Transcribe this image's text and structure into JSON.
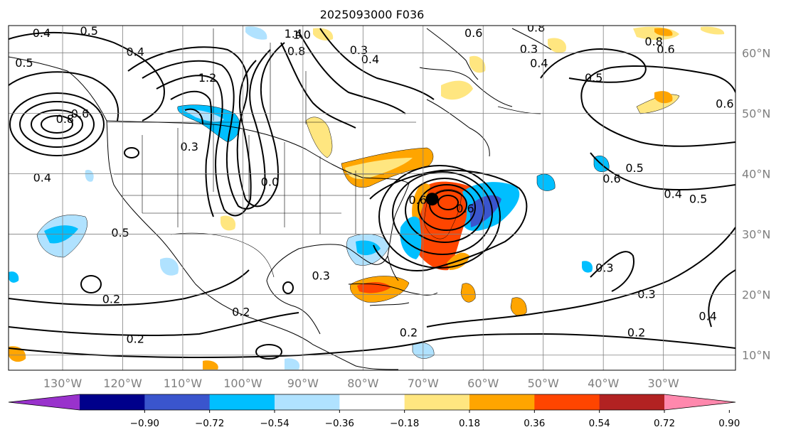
{
  "title": "2025093000 F036",
  "map": {
    "lon_labels": [
      "130°W",
      "120°W",
      "110°W",
      "100°W",
      "90°W",
      "80°W",
      "70°W",
      "60°W",
      "50°W",
      "40°W",
      "30°W"
    ],
    "lat_labels": [
      "60°N",
      "50°N",
      "40°N",
      "30°N",
      "20°N",
      "10°N"
    ],
    "lon_range": [
      -139,
      -18
    ],
    "lat_range": [
      7.5,
      64.5
    ],
    "storm_center": {
      "lon": -68.5,
      "lat": 35.8
    },
    "contour_labels": [
      {
        "text": "0.4",
        "lon": -133.5,
        "lat": 62.6
      },
      {
        "text": "0.5",
        "lon": -125.6,
        "lat": 63.0
      },
      {
        "text": "0.4",
        "lon": -117.9,
        "lat": 59.5
      },
      {
        "text": "0.5",
        "lon": -136.4,
        "lat": 57.7
      },
      {
        "text": "0.8",
        "lon": -129.6,
        "lat": 48.4
      },
      {
        "text": "0.6",
        "lon": -127.1,
        "lat": 49.3
      },
      {
        "text": "1.2",
        "lon": -105.9,
        "lat": 55.2
      },
      {
        "text": "0.3",
        "lon": -108.9,
        "lat": 43.8
      },
      {
        "text": "0.4",
        "lon": -133.4,
        "lat": 38.7
      },
      {
        "text": "0.5",
        "lon": -120.4,
        "lat": 29.6
      },
      {
        "text": "0.2",
        "lon": -121.9,
        "lat": 18.6
      },
      {
        "text": "0.2",
        "lon": -100.3,
        "lat": 16.5
      },
      {
        "text": "0.2",
        "lon": -117.9,
        "lat": 12.0
      },
      {
        "text": "1.4",
        "lon": -91.6,
        "lat": 62.5
      },
      {
        "text": "0.8",
        "lon": -91.1,
        "lat": 59.6
      },
      {
        "text": "1.0",
        "lon": -90.2,
        "lat": 62.3
      },
      {
        "text": "0.3",
        "lon": -80.7,
        "lat": 59.8
      },
      {
        "text": "0.4",
        "lon": -78.8,
        "lat": 58.3
      },
      {
        "text": "0.6",
        "lon": -61.6,
        "lat": 62.6
      },
      {
        "text": "0.3",
        "lon": -52.4,
        "lat": 60.0
      },
      {
        "text": "0.4",
        "lon": -50.7,
        "lat": 57.6
      },
      {
        "text": "0.8",
        "lon": -51.2,
        "lat": 63.5
      },
      {
        "text": "0.5",
        "lon": -41.6,
        "lat": 55.2
      },
      {
        "text": "0.8",
        "lon": -31.6,
        "lat": 61.2
      },
      {
        "text": "0.6",
        "lon": -29.6,
        "lat": 59.9
      },
      {
        "text": "0.6",
        "lon": -19.8,
        "lat": 50.9
      },
      {
        "text": "0.5",
        "lon": -34.8,
        "lat": 40.3
      },
      {
        "text": "0.6",
        "lon": -38.6,
        "lat": 38.5
      },
      {
        "text": "0.4",
        "lon": -28.4,
        "lat": 36.0
      },
      {
        "text": "0.5",
        "lon": -24.2,
        "lat": 35.2
      },
      {
        "text": "0.3",
        "lon": -39.8,
        "lat": 23.8
      },
      {
        "text": "0.3",
        "lon": -32.8,
        "lat": 19.4
      },
      {
        "text": "0.2",
        "lon": -34.5,
        "lat": 13.1
      },
      {
        "text": "0.4",
        "lon": -22.6,
        "lat": 15.8
      },
      {
        "text": "0.2",
        "lon": -72.4,
        "lat": 13.1
      },
      {
        "text": "0.3",
        "lon": -87.0,
        "lat": 22.5
      },
      {
        "text": "0.0",
        "lon": -95.5,
        "lat": 38.0
      },
      {
        "text": "0.6",
        "lon": -70.9,
        "lat": 35.0
      },
      {
        "text": "0.6",
        "lon": -63.0,
        "lat": 33.6
      }
    ]
  },
  "colorbar": {
    "ticks": [
      "−0.90",
      "−0.72",
      "−0.54",
      "−0.36",
      "−0.18",
      "0.18",
      "0.36",
      "0.54",
      "0.72",
      "0.90"
    ],
    "colors": [
      "#9932cc",
      "#00008b",
      "#3a55cd",
      "#00bfff",
      "#b0e2ff",
      "#ffffff",
      "#ffe680",
      "#ffa500",
      "#ff4500",
      "#b22222",
      "#ff88ad"
    ]
  }
}
